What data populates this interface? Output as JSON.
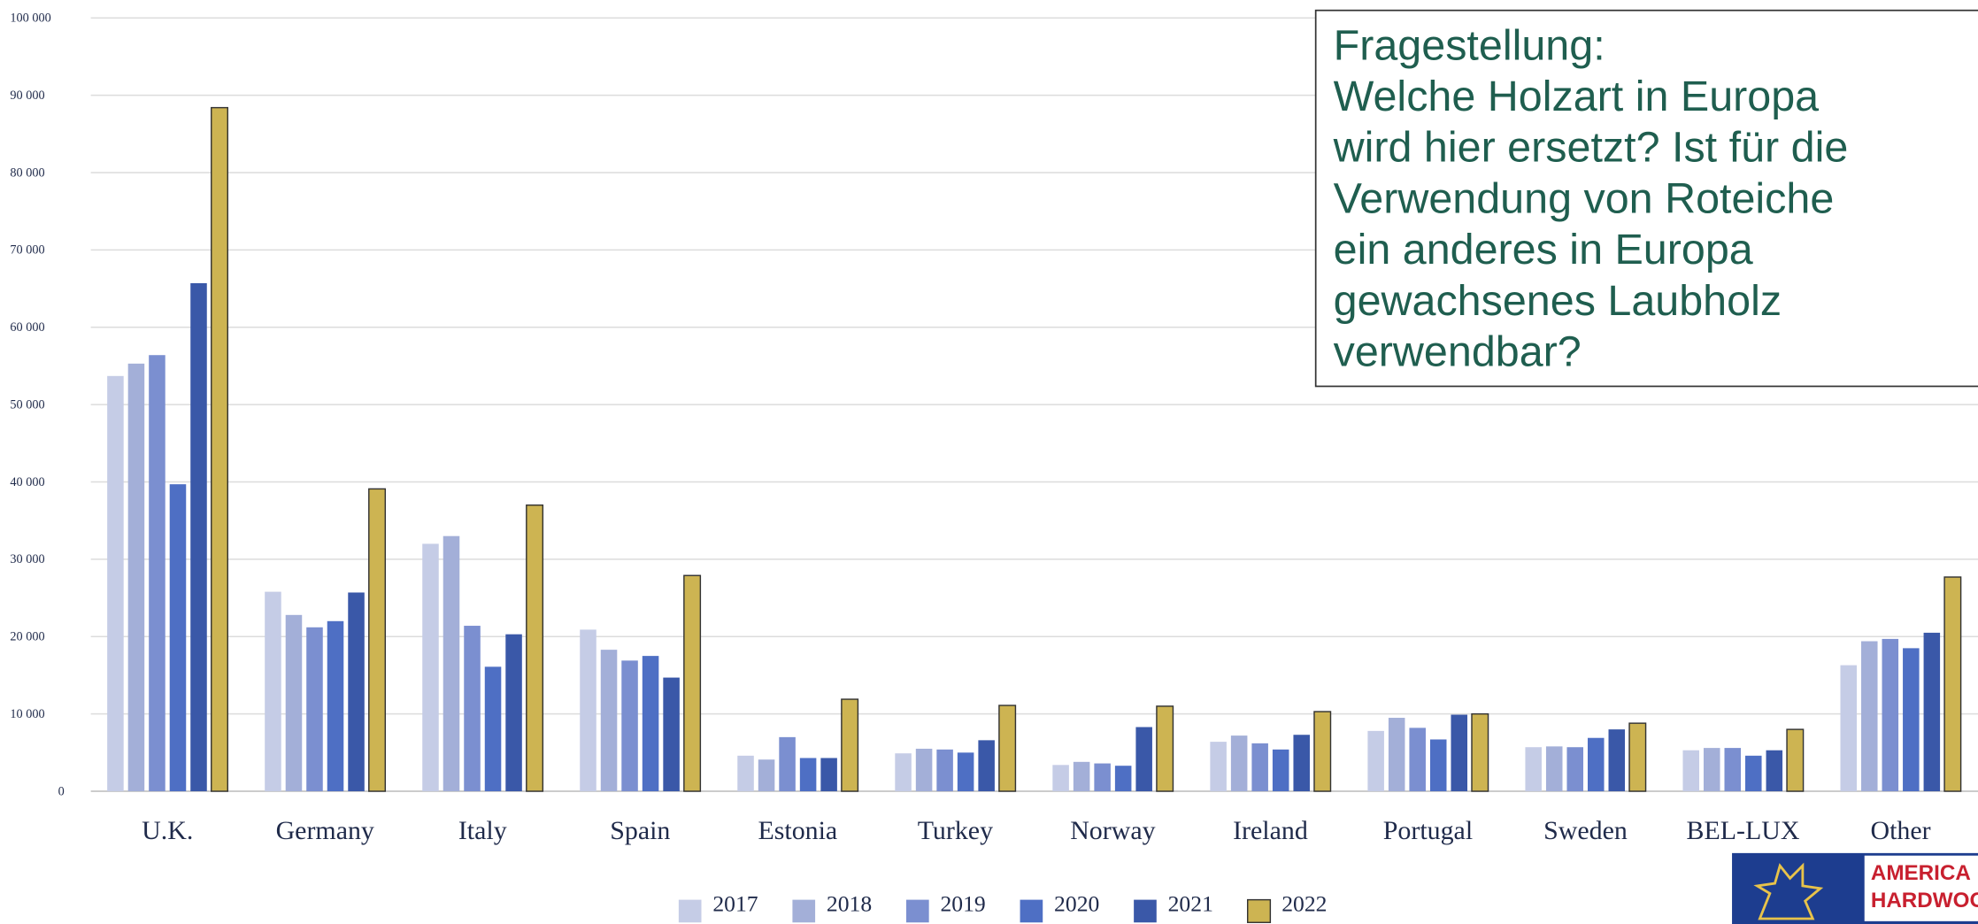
{
  "chart_data": {
    "type": "bar",
    "categories": [
      "U.K.",
      "Germany",
      "Italy",
      "Spain",
      "Estonia",
      "Turkey",
      "Norway",
      "Ireland",
      "Portugal",
      "Sweden",
      "BEL-LUX",
      "Other"
    ],
    "series": [
      {
        "name": "2017",
        "color": "#c5cce6",
        "values": [
          53700,
          25800,
          32000,
          20900,
          4600,
          4900,
          3400,
          6400,
          7800,
          5700,
          5300,
          16300
        ]
      },
      {
        "name": "2018",
        "color": "#a3afd8",
        "values": [
          55300,
          22800,
          33000,
          18300,
          4100,
          5500,
          3800,
          7200,
          9500,
          5800,
          5600,
          19400
        ]
      },
      {
        "name": "2019",
        "color": "#7b8fd0",
        "values": [
          56400,
          21200,
          21400,
          16900,
          7000,
          5400,
          3600,
          6200,
          8200,
          5700,
          5600,
          19700
        ]
      },
      {
        "name": "2020",
        "color": "#4e6fc4",
        "values": [
          39700,
          22000,
          16100,
          17500,
          4300,
          5000,
          3300,
          5400,
          6700,
          6900,
          4600,
          18500
        ]
      },
      {
        "name": "2021",
        "color": "#3a58a8",
        "values": [
          65700,
          25700,
          20300,
          14700,
          4300,
          6600,
          8300,
          7300,
          9900,
          8000,
          5300,
          20500
        ]
      },
      {
        "name": "2022",
        "color": "#cdb452",
        "values": [
          88400,
          39100,
          37000,
          27900,
          11900,
          11100,
          11000,
          10300,
          10000,
          8800,
          8000,
          27700
        ]
      }
    ],
    "ylim": [
      0,
      100000
    ],
    "yticks": [
      0,
      {
        "value": 10000,
        "label": "10 000"
      },
      {
        "value": 20000,
        "label": "20 000"
      },
      {
        "value": 30000,
        "label": "30 000"
      },
      {
        "value": 40000,
        "label": "40 000"
      },
      {
        "value": 50000,
        "label": "50 000"
      },
      {
        "value": 60000,
        "label": "60 000"
      },
      {
        "value": 70000,
        "label": "70 000"
      },
      {
        "value": 80000,
        "label": "80 000"
      },
      {
        "value": 90000,
        "label": "90 000"
      },
      {
        "value": 100000,
        "label": "100 000"
      }
    ],
    "grid": true,
    "legend": "bottom"
  },
  "annotation": {
    "lines": [
      "Fragestellung:",
      "Welche Holzart in Europa",
      "wird hier ersetzt? Ist für die",
      "Verwendung von Roteiche",
      "ein anderes in Europa",
      "gewachsenes Laubholz",
      "verwendbar?"
    ]
  },
  "logo": {
    "lines": [
      "AMERICA",
      "HARDWOO"
    ]
  }
}
